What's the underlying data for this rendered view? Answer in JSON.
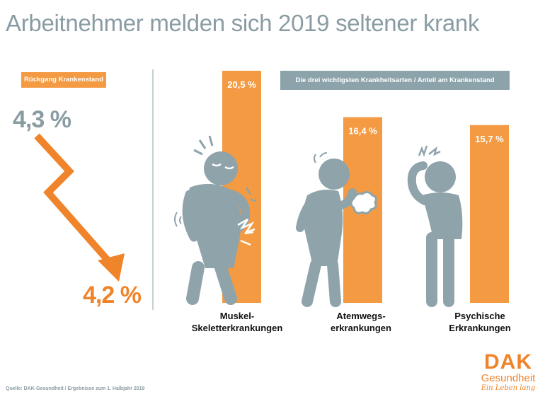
{
  "title": "Arbeitnehmer melden sich 2019 seltener krank",
  "left_panel": {
    "label": "Rückgang Krankenstand",
    "value_before": "4,3 %",
    "value_after": "4,2 %"
  },
  "right_panel": {
    "label": "Die drei wichtigsten Krankheitsarten / Anteil am Krankenstand"
  },
  "chart_data": {
    "type": "bar",
    "categories": [
      "Muskel-Skeletterkrankungen",
      "Atemwegserkrankungen",
      "Psychische Erkrankungen"
    ],
    "category_lines": [
      [
        "Muskel-",
        "Skeletterkrankungen"
      ],
      [
        "Atemwegs-",
        "erkrankungen"
      ],
      [
        "Psychische",
        "Erkrankungen"
      ]
    ],
    "values": [
      20.5,
      16.4,
      15.7
    ],
    "value_labels": [
      "20,5 %",
      "16,4 %",
      "15,7 %"
    ],
    "unit": "%",
    "ylim": [
      0,
      21
    ]
  },
  "krankenstand_decline": {
    "type": "line",
    "x": [
      "before",
      "after"
    ],
    "values": [
      4.3,
      4.2
    ],
    "unit": "%"
  },
  "colors": {
    "accent": "#f39a43",
    "arrow": "#f0842b",
    "figure": "#8fa3aa",
    "text_gray": "#8a9ca3"
  },
  "source": "Quelle: DAK-Gesundheit / Ergebnisse zum 1. Halbjahr 2019",
  "logo": {
    "name": "DAK",
    "line2": "Gesundheit",
    "tagline": "Ein Leben lang"
  }
}
